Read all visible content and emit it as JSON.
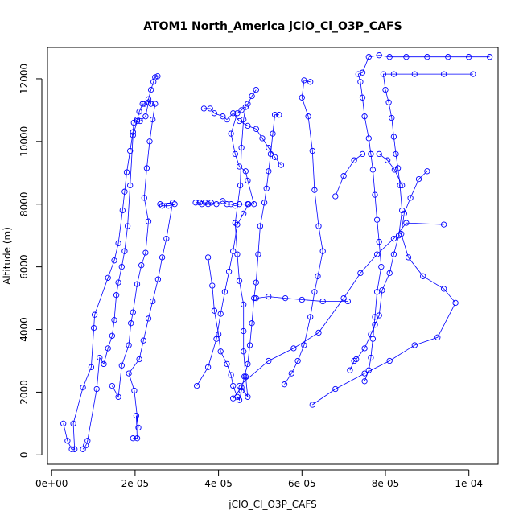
{
  "chart_data": {
    "type": "scatter",
    "title": "ATOM1 North_America jClO_Cl_O3P_CAFS",
    "xlabel": "jClO_Cl_O3P_CAFS",
    "ylabel": "Altitude (m)",
    "xlim": [
      -1e-06,
      0.000107
    ],
    "ylim": [
      -300,
      13000
    ],
    "x_ticks": [
      0,
      2e-05,
      4e-05,
      6e-05,
      8e-05,
      0.0001
    ],
    "x_tick_labels": [
      "0e+00",
      "2e-05",
      "4e-05",
      "6e-05",
      "8e-05",
      "1e-04"
    ],
    "y_ticks": [
      0,
      2000,
      4000,
      6000,
      8000,
      10000,
      12000
    ],
    "y_tick_labels": [
      "0",
      "2000",
      "4000",
      "6000",
      "8000",
      "10000",
      "12000"
    ],
    "color": "#0000ff",
    "series": [
      {
        "points": [
          [
            2.8e-06,
            1000
          ],
          [
            3.8e-06,
            450
          ],
          [
            4.8e-06,
            180
          ],
          [
            5.5e-06,
            180
          ],
          [
            5.2e-06,
            1000
          ],
          [
            7.5e-06,
            2150
          ],
          [
            9.5e-06,
            2800
          ],
          [
            1.01e-05,
            4050
          ],
          [
            1.03e-05,
            4470
          ],
          [
            1.35e-05,
            5650
          ],
          [
            1.5e-05,
            6200
          ],
          [
            1.6e-05,
            6750
          ],
          [
            1.7e-05,
            7800
          ],
          [
            1.75e-05,
            8400
          ],
          [
            1.8e-05,
            9020
          ],
          [
            1.88e-05,
            9700
          ],
          [
            1.95e-05,
            10300
          ],
          [
            1.97e-05,
            10600
          ],
          [
            2.05e-05,
            10700
          ],
          [
            2.1e-05,
            10950
          ],
          [
            2.18e-05,
            11200
          ],
          [
            2.22e-05,
            11200
          ],
          [
            2.32e-05,
            11350
          ],
          [
            2.38e-05,
            11650
          ],
          [
            2.44e-05,
            11900
          ],
          [
            2.48e-05,
            12050
          ],
          [
            2.54e-05,
            12080
          ]
        ]
      },
      {
        "points": [
          [
            7.5e-06,
            180
          ],
          [
            8.2e-06,
            300
          ],
          [
            8.6e-06,
            450
          ],
          [
            1.08e-05,
            2100
          ],
          [
            1.15e-05,
            3100
          ],
          [
            1.25e-05,
            2900
          ],
          [
            1.35e-05,
            3400
          ],
          [
            1.45e-05,
            3800
          ],
          [
            1.5e-05,
            4300
          ],
          [
            1.55e-05,
            5100
          ],
          [
            1.6e-05,
            5500
          ],
          [
            1.68e-05,
            6000
          ],
          [
            1.75e-05,
            6500
          ],
          [
            1.82e-05,
            7300
          ],
          [
            1.88e-05,
            8600
          ],
          [
            1.95e-05,
            10200
          ],
          [
            2.05e-05,
            10650
          ],
          [
            2.12e-05,
            10650
          ],
          [
            2.25e-05,
            10800
          ],
          [
            2.32e-05,
            11250
          ],
          [
            2.38e-05,
            11200
          ]
        ]
      },
      {
        "points": [
          [
            1.95e-05,
            530
          ],
          [
            2.05e-05,
            530
          ],
          [
            2.03e-05,
            1250
          ],
          [
            2.08e-05,
            870
          ],
          [
            1.98e-05,
            2050
          ],
          [
            1.85e-05,
            2600
          ],
          [
            2.1e-05,
            3050
          ],
          [
            2.2e-05,
            3650
          ],
          [
            2.32e-05,
            4350
          ],
          [
            2.42e-05,
            4900
          ],
          [
            2.55e-05,
            5600
          ],
          [
            2.65e-05,
            6300
          ],
          [
            2.75e-05,
            6900
          ],
          [
            2.9e-05,
            8050
          ],
          [
            2.6e-05,
            8000
          ],
          [
            2.65e-05,
            7950
          ],
          [
            2.8e-05,
            7950
          ],
          [
            2.95e-05,
            8000
          ]
        ]
      },
      {
        "points": [
          [
            1.45e-05,
            2200
          ],
          [
            1.6e-05,
            1850
          ],
          [
            1.68e-05,
            2850
          ],
          [
            1.85e-05,
            3500
          ],
          [
            1.9e-05,
            4200
          ],
          [
            1.95e-05,
            4550
          ],
          [
            2.05e-05,
            5450
          ],
          [
            2.15e-05,
            6050
          ],
          [
            2.25e-05,
            6450
          ],
          [
            2.32e-05,
            7450
          ],
          [
            2.22e-05,
            8200
          ],
          [
            2.28e-05,
            9150
          ],
          [
            2.35e-05,
            10000
          ],
          [
            2.42e-05,
            10700
          ],
          [
            2.48e-05,
            11200
          ]
        ]
      },
      {
        "points": [
          [
            3.48e-05,
            2200
          ],
          [
            3.75e-05,
            2800
          ],
          [
            3.95e-05,
            3700
          ],
          [
            4.05e-05,
            4500
          ],
          [
            4.15e-05,
            5200
          ],
          [
            4.25e-05,
            5850
          ],
          [
            4.35e-05,
            6500
          ],
          [
            4.45e-05,
            7350
          ],
          [
            4.6e-05,
            7700
          ],
          [
            4.72e-05,
            8000
          ],
          [
            4.85e-05,
            8000
          ],
          [
            4.7e-05,
            8750
          ],
          [
            4.65e-05,
            9050
          ],
          [
            4.5e-05,
            9200
          ],
          [
            4.4e-05,
            9600
          ],
          [
            4.3e-05,
            10250
          ],
          [
            4.45e-05,
            10900
          ],
          [
            4.55e-05,
            11000
          ],
          [
            4.7e-05,
            11200
          ],
          [
            4.8e-05,
            11450
          ],
          [
            4.9e-05,
            11650
          ]
        ]
      },
      {
        "points": [
          [
            3.45e-05,
            8050
          ],
          [
            3.55e-05,
            8050
          ],
          [
            3.6e-05,
            8000
          ],
          [
            3.68e-05,
            8050
          ],
          [
            3.75e-05,
            8000
          ],
          [
            3.82e-05,
            8050
          ],
          [
            3.95e-05,
            8000
          ],
          [
            4.1e-05,
            8100
          ],
          [
            4.2e-05,
            8000
          ],
          [
            4.3e-05,
            8000
          ],
          [
            4.4e-05,
            7950
          ],
          [
            4.5e-05,
            8000
          ],
          [
            4.7e-05,
            8000
          ]
        ]
      },
      {
        "points": [
          [
            3.65e-05,
            11050
          ],
          [
            3.8e-05,
            11050
          ],
          [
            3.9e-05,
            10900
          ],
          [
            4.1e-05,
            10800
          ],
          [
            4.2e-05,
            10700
          ],
          [
            4.35e-05,
            10900
          ],
          [
            4.5e-05,
            10650
          ],
          [
            4.7e-05,
            10500
          ],
          [
            4.9e-05,
            10400
          ],
          [
            5.05e-05,
            10100
          ],
          [
            5.2e-05,
            9800
          ],
          [
            5.35e-05,
            9500
          ],
          [
            5.5e-05,
            9250
          ]
        ]
      },
      {
        "points": [
          [
            3.75e-05,
            6300
          ],
          [
            3.85e-05,
            5400
          ],
          [
            3.9e-05,
            4600
          ],
          [
            4e-05,
            3850
          ],
          [
            4.05e-05,
            3300
          ],
          [
            4.2e-05,
            2900
          ],
          [
            4.3e-05,
            2550
          ],
          [
            4.35e-05,
            2200
          ],
          [
            4.45e-05,
            1850
          ],
          [
            4.5e-05,
            1750
          ],
          [
            4.55e-05,
            2050
          ],
          [
            4.62e-05,
            2500
          ],
          [
            4.7e-05,
            2900
          ],
          [
            4.75e-05,
            3500
          ],
          [
            4.8e-05,
            4200
          ],
          [
            4.85e-05,
            5000
          ],
          [
            4.9e-05,
            5500
          ],
          [
            4.95e-05,
            6400
          ],
          [
            5e-05,
            7300
          ],
          [
            5.1e-05,
            8050
          ],
          [
            5.15e-05,
            8500
          ],
          [
            5.2e-05,
            9050
          ],
          [
            5.25e-05,
            9600
          ],
          [
            5.3e-05,
            10250
          ],
          [
            5.35e-05,
            10850
          ],
          [
            5.45e-05,
            10850
          ]
        ]
      },
      {
        "points": [
          [
            4.35e-05,
            1800
          ],
          [
            4.55e-05,
            2150
          ],
          [
            4.7e-05,
            1850
          ],
          [
            4.65e-05,
            2500
          ],
          [
            4.6e-05,
            3300
          ],
          [
            4.6e-05,
            3950
          ],
          [
            4.6e-05,
            4800
          ],
          [
            4.5e-05,
            5550
          ],
          [
            4.45e-05,
            6400
          ],
          [
            4.4e-05,
            7400
          ],
          [
            4.52e-05,
            8600
          ],
          [
            4.55e-05,
            9800
          ],
          [
            4.6e-05,
            10700
          ],
          [
            4.65e-05,
            11100
          ]
        ]
      },
      {
        "points": [
          [
            4.9e-05,
            5000
          ],
          [
            5.2e-05,
            5050
          ],
          [
            5.6e-05,
            5000
          ],
          [
            6e-05,
            4950
          ],
          [
            6.5e-05,
            4900
          ],
          [
            7.1e-05,
            4900
          ]
        ]
      },
      {
        "points": [
          [
            5.58e-05,
            2250
          ],
          [
            5.75e-05,
            2600
          ],
          [
            5.9e-05,
            3000
          ],
          [
            6.05e-05,
            3500
          ],
          [
            6.2e-05,
            4400
          ],
          [
            6.3e-05,
            5200
          ],
          [
            6.38e-05,
            5700
          ],
          [
            6.5e-05,
            6500
          ],
          [
            6.4e-05,
            7300
          ],
          [
            6.3e-05,
            8450
          ],
          [
            6.25e-05,
            9700
          ],
          [
            6.15e-05,
            10800
          ],
          [
            6e-05,
            11400
          ],
          [
            6.05e-05,
            11950
          ],
          [
            6.2e-05,
            11900
          ]
        ]
      },
      {
        "points": [
          [
            4.5e-05,
            2200
          ],
          [
            5.2e-05,
            3000
          ],
          [
            5.8e-05,
            3400
          ],
          [
            6.4e-05,
            3900
          ],
          [
            7e-05,
            5000
          ],
          [
            7.4e-05,
            5800
          ],
          [
            7.8e-05,
            6400
          ],
          [
            8.2e-05,
            6900
          ],
          [
            8.5e-05,
            7400
          ],
          [
            9.4e-05,
            7350
          ]
        ]
      },
      {
        "points": [
          [
            6.25e-05,
            1600
          ],
          [
            6.8e-05,
            2100
          ],
          [
            7.5e-05,
            2600
          ],
          [
            8.1e-05,
            3000
          ],
          [
            8.7e-05,
            3500
          ],
          [
            9.25e-05,
            3750
          ],
          [
            9.68e-05,
            4850
          ],
          [
            9.4e-05,
            5300
          ],
          [
            8.9e-05,
            5700
          ],
          [
            8.55e-05,
            6300
          ],
          [
            8.38e-05,
            7050
          ],
          [
            8.45e-05,
            7700
          ],
          [
            8.6e-05,
            8200
          ],
          [
            8.8e-05,
            8800
          ],
          [
            9e-05,
            9050
          ]
        ]
      },
      {
        "points": [
          [
            7.15e-05,
            2700
          ],
          [
            7.25e-05,
            3000
          ],
          [
            7.3e-05,
            3050
          ],
          [
            7.5e-05,
            3400
          ],
          [
            7.65e-05,
            3850
          ],
          [
            7.75e-05,
            4150
          ],
          [
            7.85e-05,
            4450
          ],
          [
            7.92e-05,
            5250
          ],
          [
            8.1e-05,
            5800
          ],
          [
            8.2e-05,
            6400
          ],
          [
            8.32e-05,
            7000
          ],
          [
            8.4e-05,
            7800
          ],
          [
            8.35e-05,
            8600
          ],
          [
            8.3e-05,
            9150
          ],
          [
            8.25e-05,
            9600
          ],
          [
            8.2e-05,
            10150
          ],
          [
            8.15e-05,
            10750
          ],
          [
            8.08e-05,
            11250
          ],
          [
            8e-05,
            11650
          ],
          [
            7.95e-05,
            12150
          ],
          [
            8.2e-05,
            12150
          ],
          [
            8.7e-05,
            12150
          ],
          [
            9.4e-05,
            12150
          ],
          [
            0.000101,
            12150
          ]
        ]
      },
      {
        "points": [
          [
            7.5e-05,
            2350
          ],
          [
            7.6e-05,
            2700
          ],
          [
            7.65e-05,
            3100
          ],
          [
            7.7e-05,
            3700
          ],
          [
            7.75e-05,
            4400
          ],
          [
            7.8e-05,
            5200
          ],
          [
            7.9e-05,
            6000
          ],
          [
            7.85e-05,
            6800
          ],
          [
            7.8e-05,
            7500
          ],
          [
            7.75e-05,
            8300
          ],
          [
            7.7e-05,
            9100
          ],
          [
            7.65e-05,
            9600
          ],
          [
            7.6e-05,
            10100
          ],
          [
            7.5e-05,
            10800
          ],
          [
            7.45e-05,
            11400
          ],
          [
            7.4e-05,
            11900
          ],
          [
            7.35e-05,
            12150
          ],
          [
            7.45e-05,
            12200
          ],
          [
            7.6e-05,
            12700
          ],
          [
            7.85e-05,
            12750
          ],
          [
            8.1e-05,
            12700
          ],
          [
            8.5e-05,
            12700
          ],
          [
            9e-05,
            12700
          ],
          [
            9.5e-05,
            12700
          ],
          [
            0.0001,
            12700
          ],
          [
            0.000105,
            12700
          ]
        ]
      },
      {
        "points": [
          [
            6.8e-05,
            8250
          ],
          [
            7e-05,
            8900
          ],
          [
            7.25e-05,
            9400
          ],
          [
            7.45e-05,
            9600
          ],
          [
            7.65e-05,
            9600
          ],
          [
            7.85e-05,
            9600
          ],
          [
            8.05e-05,
            9400
          ],
          [
            8.22e-05,
            9100
          ],
          [
            8.4e-05,
            8600
          ]
        ]
      }
    ]
  }
}
